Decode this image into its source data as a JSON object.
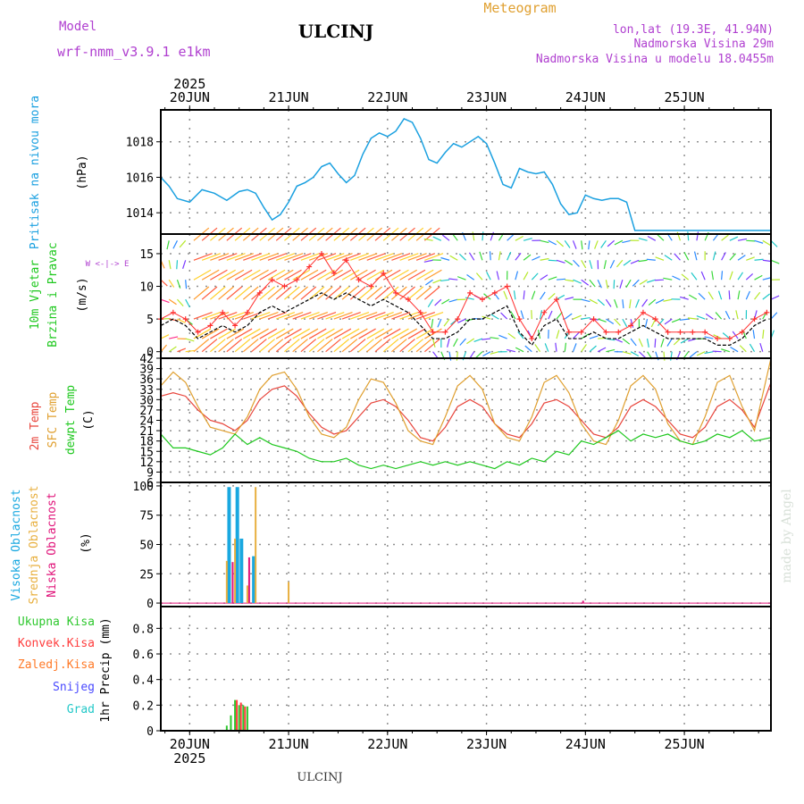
{
  "header": {
    "model_label": "Model",
    "model_name": "wrf-nmm_v3.9.1 e1km",
    "station": "ULCINJ",
    "product": "Meteogram",
    "coords": "lon,lat (19.3E, 41.94N)",
    "elevation": "Nadmorska Visina 29m",
    "model_elevation": "Nadmorska Visina u modelu 18.0455m"
  },
  "footer": {
    "station": "ULCINJ",
    "credit": "made by Angel"
  },
  "time_axis": {
    "year": "2025",
    "days": [
      "20JUN",
      "21JUN",
      "22JUN",
      "23JUN",
      "24JUN",
      "25JUN"
    ],
    "range_hours": [
      -7,
      141
    ]
  },
  "colors": {
    "pressure": "#1aa0e0",
    "t2m": "#e8453c",
    "tsfc": "#e0a030",
    "dewpoint": "#1ec81e",
    "wind_speed": "#000000",
    "gust": "#ff3030",
    "high_cloud": "#19a8e0",
    "mid_cloud": "#e8b040",
    "low_cloud": "#e0147a",
    "precip_total": "#2ec82e",
    "precip_conv": "#ff3c3c",
    "precip_frz": "#ff7a28",
    "snow": "#4a4aff",
    "graupel": "#22c8c8",
    "grid": "#909090",
    "model": "#b040d0",
    "title_meteogram": "#e0a030"
  },
  "chart_data": [
    {
      "type": "line",
      "title": "",
      "ylabel": [
        "Pritisak na nivou mora",
        "(hPa)"
      ],
      "yticks": [
        1014,
        1016,
        1018
      ],
      "ylim": [
        1012.8,
        1019.8
      ],
      "series": [
        {
          "name": "Pritisak na nivou mora",
          "x_hours": [
            -7,
            -5,
            -3,
            0,
            3,
            6,
            9,
            12,
            14,
            16,
            18,
            20,
            22,
            24,
            26,
            28,
            30,
            32,
            34,
            36,
            38,
            40,
            42,
            44,
            46,
            48,
            50,
            52,
            54,
            56,
            58,
            60,
            62,
            64,
            66,
            68,
            70,
            72,
            74,
            76,
            78,
            80,
            82,
            84,
            86,
            88,
            90,
            92,
            94,
            96,
            98,
            100,
            102,
            104,
            106,
            108,
            110,
            112,
            114,
            116,
            118,
            120,
            122,
            124,
            126,
            128,
            130,
            132,
            134,
            136,
            138,
            141
          ],
          "values": [
            1016.0,
            1015.5,
            1014.8,
            1014.6,
            1015.3,
            1015.1,
            1014.7,
            1015.2,
            1015.3,
            1015.1,
            1014.3,
            1013.6,
            1013.9,
            1014.6,
            1015.5,
            1015.7,
            1016.0,
            1016.6,
            1016.8,
            1016.2,
            1015.7,
            1016.1,
            1017.3,
            1018.2,
            1018.5,
            1018.3,
            1018.6,
            1019.3,
            1019.1,
            1018.2,
            1017.0,
            1016.8,
            1017.4,
            1017.9,
            1017.7,
            1018.0,
            1018.3,
            1017.9,
            1016.8,
            1015.6,
            1015.4,
            1016.5,
            1016.3,
            1016.2,
            1016.3,
            1015.6,
            1014.5,
            1013.9,
            1014.0,
            1015.0,
            1014.8,
            1014.7,
            1014.8,
            1014.8,
            1014.6,
            1013.0,
            1013.0,
            1013.0,
            1013.0,
            1013.0,
            1013.0,
            1013.0,
            1013.0,
            1013.0,
            1013.0,
            1013.0,
            1013.0,
            1013.0,
            1013.0,
            1013.0,
            1013.0,
            1013.0
          ]
        }
      ]
    },
    {
      "type": "line",
      "title": "",
      "ylabel": [
        "10m Vjetar",
        "Brzina i Pravac",
        "(m/s)"
      ],
      "direction_key": "W <-|-> E",
      "yticks": [
        0,
        5,
        10,
        15
      ],
      "ylim": [
        -1,
        18
      ],
      "series": [
        {
          "name": "Brzina",
          "x_hours": [
            -7,
            -4,
            -1,
            2,
            5,
            8,
            11,
            14,
            17,
            20,
            23,
            26,
            29,
            32,
            35,
            38,
            41,
            44,
            47,
            50,
            53,
            56,
            59,
            62,
            65,
            68,
            71,
            74,
            77,
            80,
            83,
            86,
            89,
            92,
            95,
            98,
            101,
            104,
            107,
            110,
            113,
            116,
            119,
            122,
            125,
            128,
            131,
            134,
            137,
            140
          ],
          "values": [
            4,
            5,
            4,
            2,
            3,
            4,
            3,
            4,
            6,
            7,
            6,
            7,
            8,
            9,
            8,
            9,
            8,
            7,
            8,
            7,
            6,
            4,
            2,
            2,
            3,
            5,
            5,
            6,
            7,
            3,
            1,
            4,
            5,
            2,
            2,
            3,
            2,
            2,
            3,
            4,
            3,
            2,
            2,
            2,
            2,
            1,
            1,
            2,
            4,
            5
          ]
        },
        {
          "name": "Udari",
          "x_hours": [
            -7,
            -4,
            -1,
            2,
            5,
            8,
            11,
            14,
            17,
            20,
            23,
            26,
            29,
            32,
            35,
            38,
            41,
            44,
            47,
            50,
            53,
            56,
            59,
            62,
            65,
            68,
            71,
            74,
            77,
            80,
            83,
            86,
            89,
            92,
            95,
            98,
            101,
            104,
            107,
            110,
            113,
            116,
            119,
            122,
            125,
            128,
            131,
            134,
            137,
            140
          ],
          "values": [
            5,
            6,
            5,
            3,
            4,
            6,
            4,
            6,
            9,
            11,
            10,
            11,
            13,
            15,
            12,
            14,
            11,
            10,
            12,
            9,
            8,
            6,
            3,
            3,
            5,
            9,
            8,
            9,
            10,
            5,
            2,
            6,
            8,
            3,
            3,
            5,
            3,
            3,
            4,
            6,
            5,
            3,
            3,
            3,
            3,
            2,
            2,
            3,
            5,
            6
          ]
        }
      ]
    },
    {
      "type": "line",
      "title": "",
      "ylabel": [
        "2m Temp",
        "SFC Temp",
        "dewpt Temp",
        "(C)"
      ],
      "yticks": [
        6,
        9,
        12,
        15,
        18,
        21,
        24,
        27,
        30,
        33,
        36,
        39,
        42
      ],
      "ylim": [
        6,
        42
      ],
      "series": [
        {
          "name": "2m Temp",
          "x_hours": [
            -7,
            -4,
            -1,
            2,
            5,
            8,
            11,
            14,
            17,
            20,
            23,
            26,
            29,
            32,
            35,
            38,
            41,
            44,
            47,
            50,
            53,
            56,
            59,
            62,
            65,
            68,
            71,
            74,
            77,
            80,
            83,
            86,
            89,
            92,
            95,
            98,
            101,
            104,
            107,
            110,
            113,
            116,
            119,
            122,
            125,
            128,
            131,
            134,
            137,
            141
          ],
          "values": [
            31,
            32,
            31,
            27,
            24,
            23,
            21,
            24,
            30,
            33,
            34,
            31,
            26,
            22,
            20,
            21,
            25,
            29,
            30,
            28,
            24,
            19,
            18,
            22,
            28,
            30,
            28,
            23,
            20,
            19,
            23,
            29,
            30,
            28,
            24,
            20,
            19,
            22,
            28,
            30,
            28,
            24,
            20,
            19,
            22,
            28,
            30,
            27,
            22,
            35
          ]
        },
        {
          "name": "SFC Temp",
          "x_hours": [
            -7,
            -4,
            -1,
            2,
            5,
            8,
            11,
            14,
            17,
            20,
            23,
            26,
            29,
            32,
            35,
            38,
            41,
            44,
            47,
            50,
            53,
            56,
            59,
            62,
            65,
            68,
            71,
            74,
            77,
            80,
            83,
            86,
            89,
            92,
            95,
            98,
            101,
            104,
            107,
            110,
            113,
            116,
            119,
            122,
            125,
            128,
            131,
            134,
            137,
            141
          ],
          "values": [
            34,
            38,
            35,
            28,
            22,
            21,
            20,
            25,
            33,
            37,
            38,
            33,
            25,
            20,
            19,
            22,
            30,
            36,
            35,
            29,
            21,
            18,
            17,
            25,
            34,
            37,
            33,
            23,
            19,
            18,
            25,
            35,
            37,
            32,
            23,
            18,
            17,
            24,
            34,
            37,
            33,
            23,
            18,
            17,
            25,
            35,
            37,
            28,
            21,
            42
          ]
        },
        {
          "name": "dewpt Temp",
          "x_hours": [
            -7,
            -4,
            -1,
            2,
            5,
            8,
            11,
            14,
            17,
            20,
            23,
            26,
            29,
            32,
            35,
            38,
            41,
            44,
            47,
            50,
            53,
            56,
            59,
            62,
            65,
            68,
            71,
            74,
            77,
            80,
            83,
            86,
            89,
            92,
            95,
            98,
            101,
            104,
            107,
            110,
            113,
            116,
            119,
            122,
            125,
            128,
            131,
            134,
            137,
            141
          ],
          "values": [
            20,
            16,
            16,
            15,
            14,
            16,
            20,
            17,
            19,
            17,
            16,
            15,
            13,
            12,
            12,
            13,
            11,
            10,
            11,
            10,
            11,
            12,
            11,
            12,
            11,
            12,
            11,
            10,
            12,
            11,
            13,
            12,
            15,
            14,
            18,
            17,
            19,
            21,
            18,
            20,
            19,
            20,
            18,
            17,
            18,
            20,
            19,
            21,
            18,
            19
          ]
        }
      ]
    },
    {
      "type": "bar",
      "title": "",
      "ylabel": [
        "Visoka Oblacnost",
        "Srednja Oblacnost",
        "Niska Oblacnost",
        "(%)"
      ],
      "yticks": [
        0,
        25,
        50,
        75,
        100
      ],
      "ylim": [
        -3,
        103
      ],
      "series": [
        {
          "name": "Visoka Oblacnost",
          "x_hours": [
            10,
            12,
            13,
            16
          ],
          "values": [
            99,
            99,
            55,
            40
          ]
        },
        {
          "name": "Srednja Oblacnost",
          "x_hours": [
            9,
            11,
            14,
            16,
            24
          ],
          "values": [
            36,
            55,
            15,
            99,
            18
          ]
        },
        {
          "name": "Niska Oblacnost",
          "x_hours": [
            10,
            14,
            95
          ],
          "values": [
            35,
            39,
            2
          ]
        }
      ]
    },
    {
      "type": "bar",
      "title": "",
      "ylabel": [
        "Ukupna Kisa",
        "Konvek.Kisa",
        "Zaledj.Kisa",
        "Snijeg",
        "Grad",
        "1hr Precip (mm)"
      ],
      "yticks": [
        0,
        0.2,
        0.4,
        0.6,
        0.8
      ],
      "ylim": [
        0,
        0.97
      ],
      "series": [
        {
          "name": "Ukupna Kisa",
          "x_hours": [
            9,
            10,
            11,
            12,
            13,
            14
          ],
          "values": [
            0.04,
            0.12,
            0.24,
            0.2,
            0.2,
            0.19
          ]
        },
        {
          "name": "Konvek.Kisa",
          "x_hours": [
            11,
            12,
            13
          ],
          "values": [
            0.24,
            0.22,
            0.19
          ]
        }
      ]
    }
  ]
}
